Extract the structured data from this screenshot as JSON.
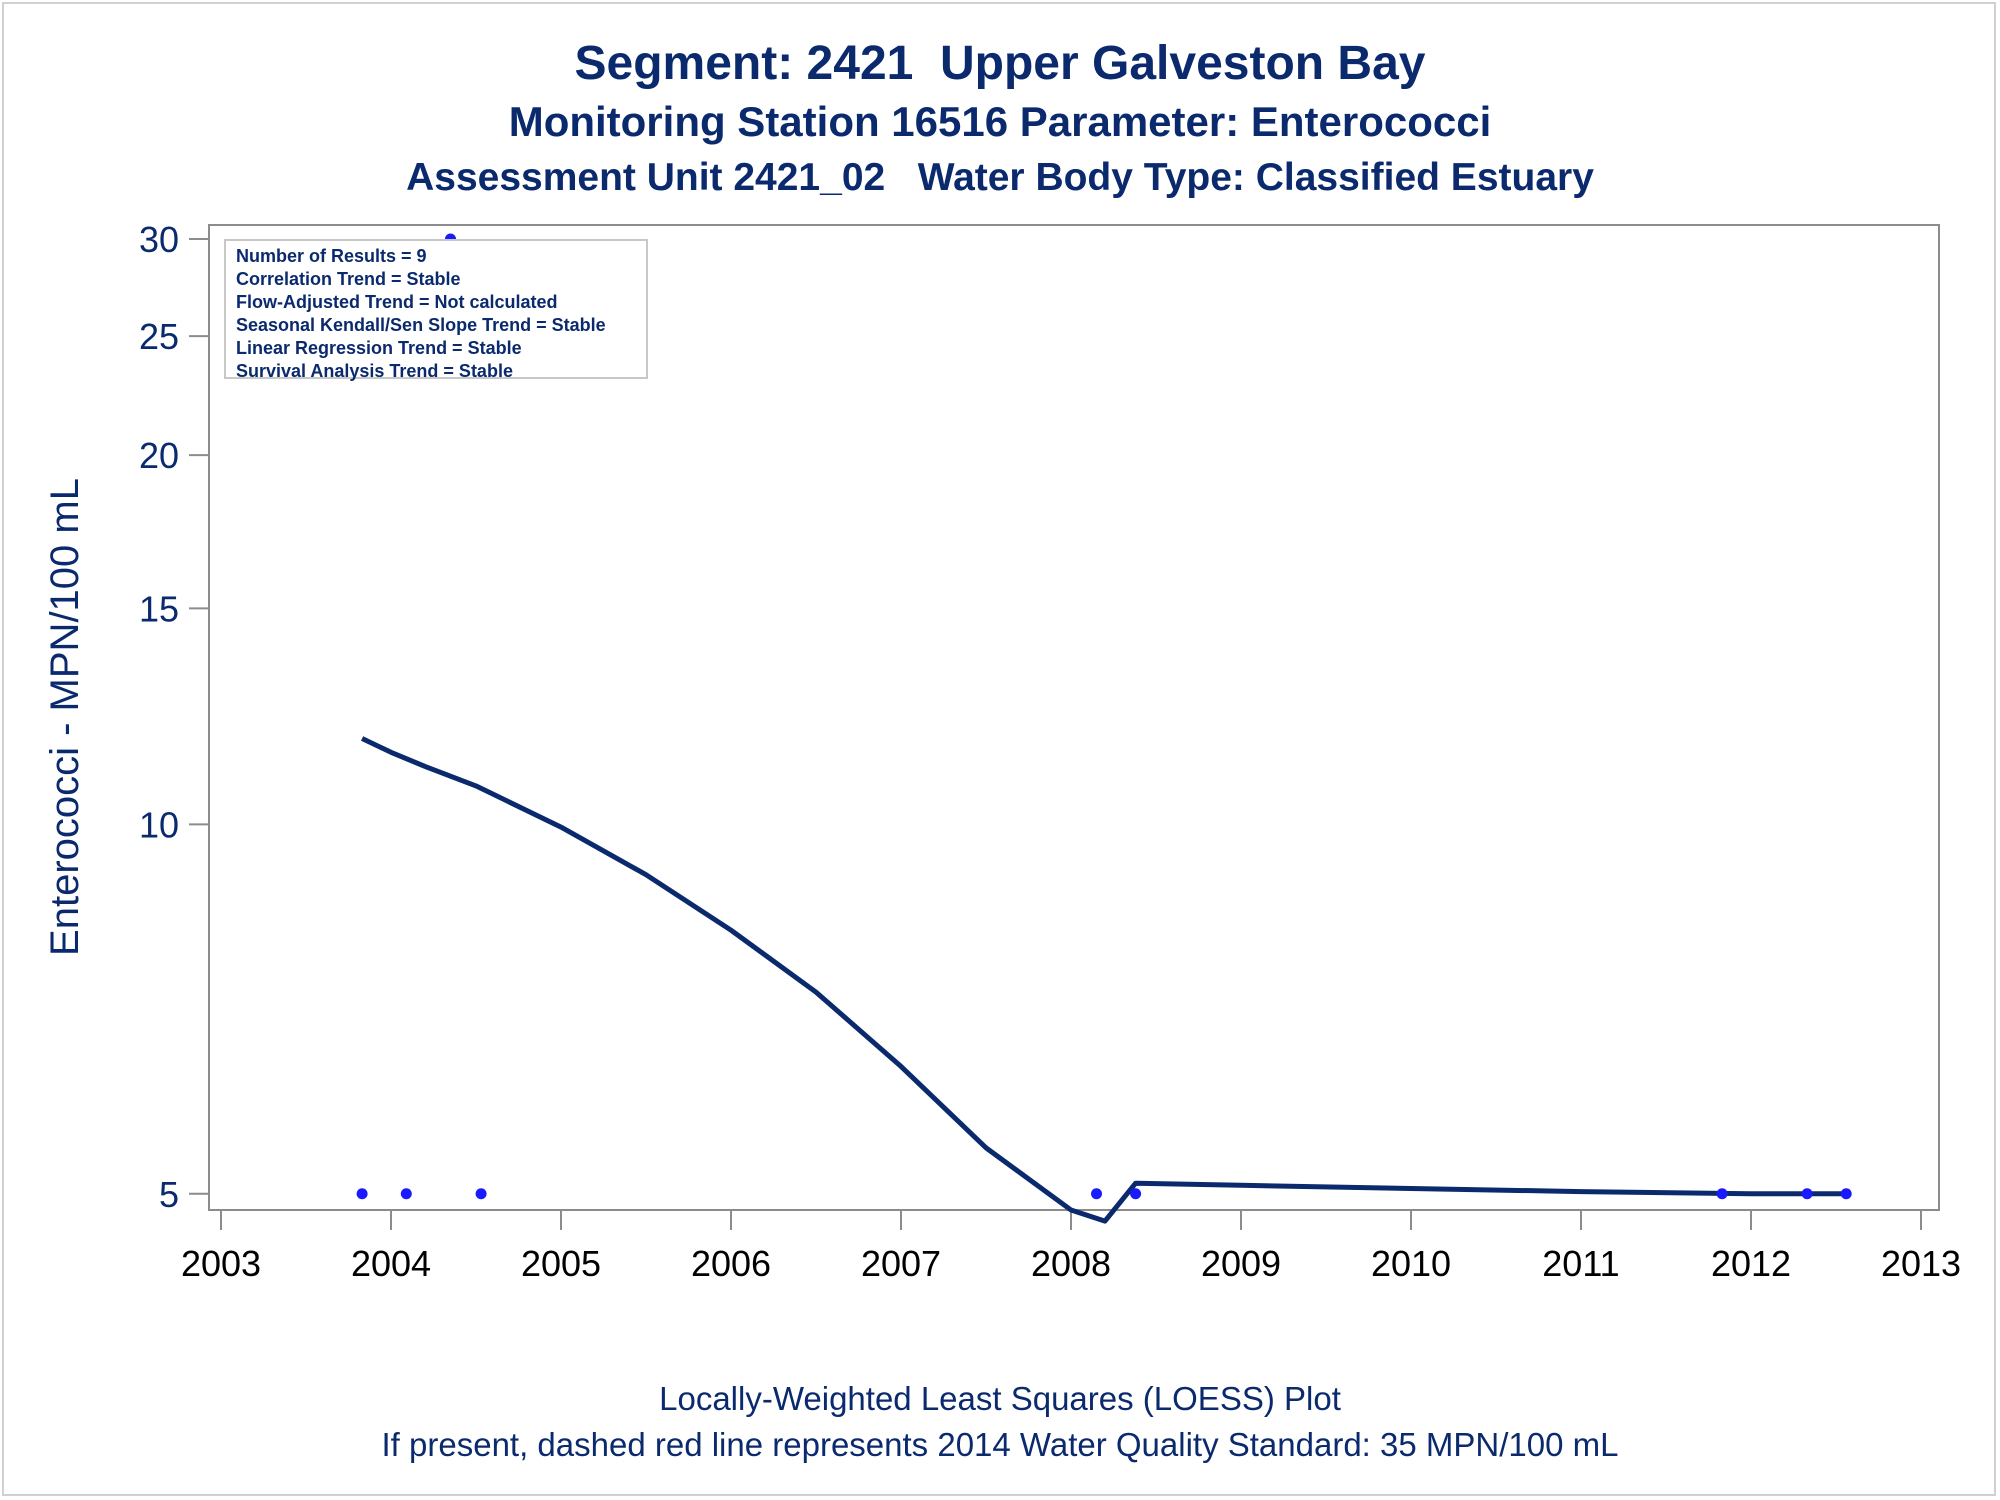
{
  "chart_data": {
    "type": "scatter",
    "title": "Segment: 2421  Upper Galveston Bay",
    "subtitle": "Monitoring Station 16516 Parameter: Enterococci",
    "subtitle2": "Assessment Unit 2421_02   Water Body Type: Classified Estuary",
    "ylabel": "Enterococci - MPN/100 mL",
    "xlabel": "",
    "footnote1": "Locally-Weighted Least Squares (LOESS) Plot",
    "footnote2": "If present, dashed red line represents 2014 Water Quality Standard: 35 MPN/100 mL",
    "y_scale": "log",
    "xlim": [
      2003,
      2013
    ],
    "ylim": [
      4.85,
      30.8
    ],
    "x_ticks": [
      2003,
      2004,
      2005,
      2006,
      2007,
      2008,
      2009,
      2010,
      2011,
      2012,
      2013
    ],
    "x_tick_labels": [
      "2003",
      "2004",
      "2005",
      "2006",
      "2007",
      "2008",
      "2009",
      "2010",
      "2011",
      "2012",
      "2013"
    ],
    "y_ticks": [
      5,
      10,
      15,
      20,
      25,
      30
    ],
    "y_tick_labels": [
      "5",
      "10",
      "15",
      "20",
      "25",
      "30"
    ],
    "grid": false,
    "legend_position": "top-left",
    "legend_lines": [
      "Number of Results = 9",
      "Correlation Trend = Stable",
      "Flow-Adjusted Trend = Not calculated",
      "Seasonal Kendall/Sen Slope Trend = Stable",
      "Linear Regression Trend = Stable",
      "Survival Analysis Trend = Stable"
    ],
    "points": [
      {
        "x": 2003.83,
        "y": 5
      },
      {
        "x": 2004.09,
        "y": 5
      },
      {
        "x": 2004.35,
        "y": 30
      },
      {
        "x": 2004.53,
        "y": 5
      },
      {
        "x": 2008.15,
        "y": 5
      },
      {
        "x": 2008.38,
        "y": 5
      },
      {
        "x": 2011.83,
        "y": 5
      },
      {
        "x": 2012.33,
        "y": 5
      },
      {
        "x": 2012.56,
        "y": 5
      }
    ],
    "loess": {
      "x": [
        2003.83,
        2004.0,
        2004.2,
        2004.5,
        2005.0,
        2005.5,
        2006.0,
        2006.5,
        2007.0,
        2007.5,
        2008.0,
        2008.2,
        2008.38,
        2009.0,
        2010.0,
        2011.0,
        2012.0,
        2012.56
      ],
      "y": [
        11.75,
        11.45,
        11.15,
        10.75,
        9.95,
        9.1,
        8.2,
        7.3,
        6.35,
        5.45,
        4.85,
        4.75,
        5.1,
        5.08,
        5.05,
        5.02,
        5.0,
        5.0
      ]
    },
    "colors": {
      "text": "#0b2a6e",
      "line": "#0b2a6e",
      "points": "#1a1aff",
      "axis": "#8c8c8c"
    }
  }
}
